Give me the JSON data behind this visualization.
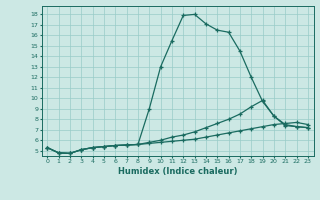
{
  "xlabel": "Humidex (Indice chaleur)",
  "background_color": "#cce8e4",
  "grid_color": "#99ccc8",
  "line_color": "#1a6b60",
  "xlim": [
    -0.5,
    23.5
  ],
  "ylim": [
    4.5,
    18.8
  ],
  "xticks": [
    0,
    1,
    2,
    3,
    4,
    5,
    6,
    7,
    8,
    9,
    10,
    11,
    12,
    13,
    14,
    15,
    16,
    17,
    18,
    19,
    20,
    21,
    22,
    23
  ],
  "yticks": [
    5,
    6,
    7,
    8,
    9,
    10,
    11,
    12,
    13,
    14,
    15,
    16,
    17,
    18
  ],
  "line1_x": [
    0,
    1,
    2,
    3,
    4,
    5,
    6,
    7,
    8,
    9,
    10,
    11,
    12,
    13,
    14,
    15,
    16,
    17,
    18,
    19,
    20,
    21,
    22,
    23
  ],
  "line1_y": [
    5.3,
    4.8,
    4.75,
    5.1,
    5.3,
    5.4,
    5.5,
    5.55,
    5.6,
    9.0,
    13.0,
    15.5,
    17.9,
    18.0,
    17.1,
    16.5,
    16.3,
    14.5,
    12.0,
    9.7,
    8.3,
    7.5,
    7.3,
    7.2
  ],
  "line2_x": [
    0,
    1,
    2,
    3,
    4,
    5,
    6,
    7,
    8,
    9,
    10,
    11,
    12,
    13,
    14,
    15,
    16,
    17,
    18,
    19,
    20,
    21,
    22,
    23
  ],
  "line2_y": [
    5.3,
    4.8,
    4.75,
    5.1,
    5.3,
    5.4,
    5.5,
    5.55,
    5.6,
    5.8,
    6.0,
    6.3,
    6.5,
    6.8,
    7.2,
    7.6,
    8.0,
    8.5,
    9.2,
    9.8,
    8.3,
    7.4,
    7.3,
    7.2
  ],
  "line3_x": [
    0,
    1,
    2,
    3,
    4,
    5,
    6,
    7,
    8,
    9,
    10,
    11,
    12,
    13,
    14,
    15,
    16,
    17,
    18,
    19,
    20,
    21,
    22,
    23
  ],
  "line3_y": [
    5.3,
    4.8,
    4.75,
    5.1,
    5.3,
    5.4,
    5.5,
    5.55,
    5.6,
    5.7,
    5.8,
    5.9,
    6.0,
    6.1,
    6.3,
    6.5,
    6.7,
    6.9,
    7.1,
    7.3,
    7.5,
    7.6,
    7.7,
    7.5
  ]
}
